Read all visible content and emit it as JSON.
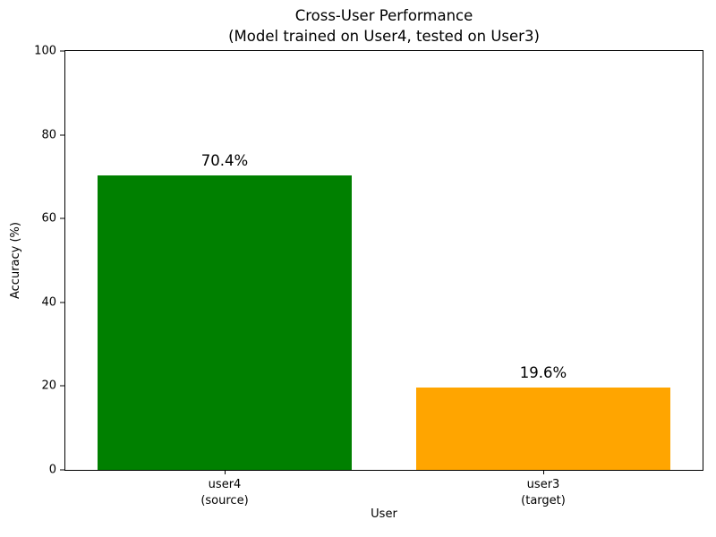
{
  "chart_data": {
    "type": "bar",
    "title": "Cross-User Performance",
    "subtitle": "(Model trained on User4, tested on User3)",
    "categories": [
      "user4\n(source)",
      "user3\n(target)"
    ],
    "xticks": [
      {
        "line1": "user4",
        "line2": "(source)"
      },
      {
        "line1": "user3",
        "line2": "(target)"
      }
    ],
    "values": [
      70.4,
      19.6
    ],
    "value_labels": [
      "70.4%",
      "19.6%"
    ],
    "bar_colors": [
      "#008000",
      "#FFA500"
    ],
    "xlabel": "User",
    "ylabel": "Accuracy (%)",
    "ylim": [
      0,
      100
    ],
    "yticks": [
      0,
      20,
      40,
      60,
      80,
      100
    ],
    "grid": false,
    "legend": "none",
    "background": "#FFFFFF",
    "spine_color": "#000000"
  }
}
